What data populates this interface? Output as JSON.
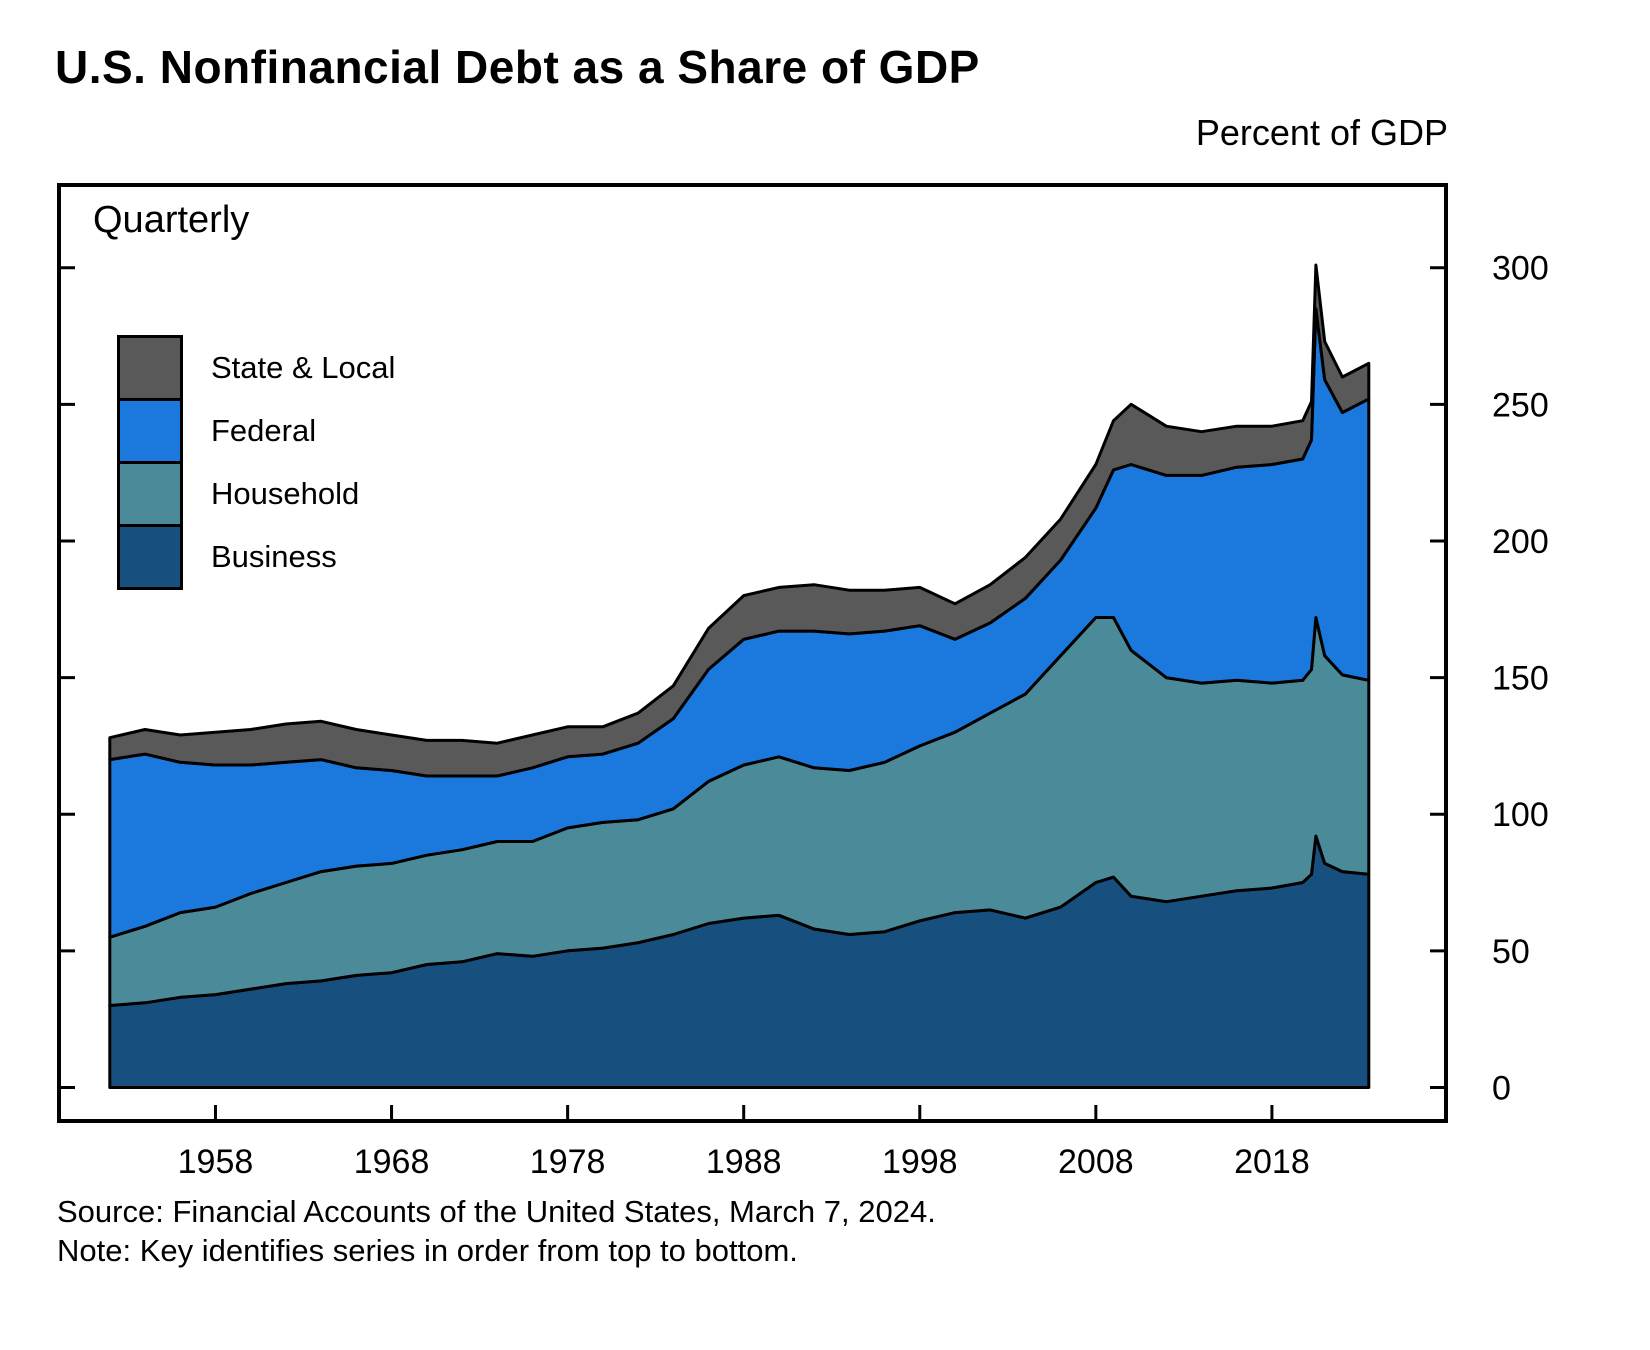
{
  "title": "U.S. Nonfinancial Debt as a Share of GDP",
  "unit_label": "Percent of GDP",
  "frequency_label": "Quarterly",
  "source_line": "Source: Financial Accounts of the United States, March 7, 2024.",
  "note_line": "Note: Key identifies series in order from top to bottom.",
  "colors": {
    "state_local": "#595959",
    "federal": "#1b79dd",
    "household": "#4b8b99",
    "business": "#17507e",
    "outline": "#000000"
  },
  "legend": {
    "items": [
      {
        "label": "State & Local",
        "color": "#595959"
      },
      {
        "label": "Federal",
        "color": "#1b79dd"
      },
      {
        "label": "Household",
        "color": "#4b8b99"
      },
      {
        "label": "Business",
        "color": "#17507e"
      }
    ]
  },
  "chart_data": {
    "type": "area",
    "stacked": true,
    "title": "U.S. Nonfinancial Debt as a Share of GDP",
    "ylabel": "Percent of GDP",
    "xlabel": "",
    "annotation": "Quarterly",
    "legend_position": "upper-left-inside",
    "legend_order": "top to bottom: State & Local, Federal, Household, Business",
    "xlim": [
      1949,
      2028
    ],
    "ylim": [
      -13,
      331
    ],
    "xticks": [
      1958,
      1968,
      1978,
      1988,
      1998,
      2008,
      2018
    ],
    "yticks": [
      0,
      50,
      100,
      150,
      200,
      250,
      300
    ],
    "x": [
      1952,
      1954,
      1956,
      1958,
      1960,
      1962,
      1964,
      1966,
      1968,
      1970,
      1972,
      1974,
      1976,
      1978,
      1980,
      1982,
      1984,
      1986,
      1988,
      1990,
      1992,
      1994,
      1996,
      1998,
      2000,
      2002,
      2004,
      2006,
      2008,
      2009,
      2010,
      2012,
      2014,
      2016,
      2018,
      2019.75,
      2020.25,
      2020.5,
      2021,
      2022,
      2023.5
    ],
    "series": [
      {
        "name": "Business",
        "color": "#17507e",
        "values": [
          30,
          31,
          33,
          34,
          36,
          38,
          39,
          41,
          42,
          45,
          46,
          49,
          48,
          50,
          51,
          53,
          56,
          60,
          62,
          63,
          58,
          56,
          57,
          61,
          64,
          65,
          62,
          66,
          75,
          77,
          70,
          68,
          70,
          72,
          73,
          75,
          78,
          92,
          82,
          79,
          78
        ]
      },
      {
        "name": "Household",
        "color": "#4b8b99",
        "values": [
          25,
          28,
          31,
          32,
          35,
          37,
          40,
          40,
          40,
          40,
          41,
          41,
          42,
          45,
          46,
          45,
          46,
          52,
          56,
          58,
          59,
          60,
          62,
          64,
          66,
          72,
          82,
          92,
          97,
          95,
          90,
          82,
          78,
          77,
          75,
          74,
          75,
          80,
          76,
          72,
          71
        ]
      },
      {
        "name": "Federal",
        "color": "#1b79dd",
        "values": [
          65,
          63,
          55,
          52,
          47,
          44,
          41,
          36,
          34,
          29,
          27,
          24,
          27,
          26,
          25,
          28,
          33,
          41,
          46,
          46,
          50,
          50,
          48,
          44,
          34,
          33,
          35,
          35,
          40,
          54,
          68,
          74,
          76,
          78,
          80,
          81,
          84,
          113,
          101,
          96,
          103
        ]
      },
      {
        "name": "State & Local",
        "color": "#595959",
        "values": [
          8,
          9,
          10,
          12,
          13,
          14,
          14,
          14,
          13,
          13,
          13,
          12,
          12,
          11,
          10,
          11,
          12,
          15,
          16,
          16,
          17,
          16,
          15,
          14,
          13,
          14,
          15,
          15,
          16,
          18,
          22,
          18,
          16,
          15,
          14,
          14,
          14,
          16,
          14,
          13,
          13
        ]
      }
    ]
  }
}
